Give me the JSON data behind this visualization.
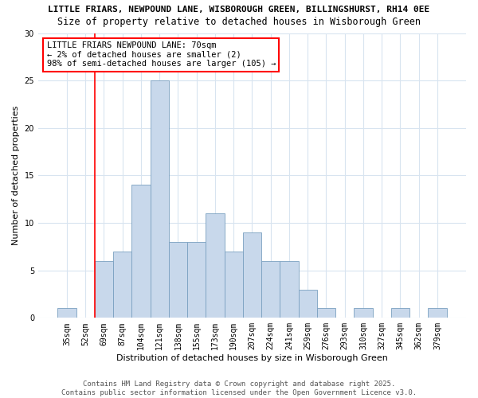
{
  "title_line1": "LITTLE FRIARS, NEWPOUND LANE, WISBOROUGH GREEN, BILLINGSHURST, RH14 0EE",
  "title_line2": "Size of property relative to detached houses in Wisborough Green",
  "xlabel": "Distribution of detached houses by size in Wisborough Green",
  "ylabel": "Number of detached properties",
  "categories": [
    "35sqm",
    "52sqm",
    "69sqm",
    "87sqm",
    "104sqm",
    "121sqm",
    "138sqm",
    "155sqm",
    "173sqm",
    "190sqm",
    "207sqm",
    "224sqm",
    "241sqm",
    "259sqm",
    "276sqm",
    "293sqm",
    "310sqm",
    "327sqm",
    "345sqm",
    "362sqm",
    "379sqm"
  ],
  "values": [
    1,
    0,
    6,
    7,
    14,
    25,
    8,
    8,
    11,
    7,
    9,
    6,
    6,
    3,
    1,
    0,
    1,
    0,
    1,
    0,
    1
  ],
  "bar_color": "#c8d8eb",
  "bar_edge_color": "#7aa0c0",
  "bar_edge_width": 0.6,
  "annotation_text": "LITTLE FRIARS NEWPOUND LANE: 70sqm\n← 2% of detached houses are smaller (2)\n98% of semi-detached houses are larger (105) →",
  "annotation_box_color": "white",
  "annotation_box_edge_color": "red",
  "marker_color": "red",
  "ylim": [
    0,
    30
  ],
  "yticks": [
    0,
    5,
    10,
    15,
    20,
    25,
    30
  ],
  "bg_color": "#ffffff",
  "plot_bg_color": "#ffffff",
  "grid_color": "#d8e4f0",
  "footer_line1": "Contains HM Land Registry data © Crown copyright and database right 2025.",
  "footer_line2": "Contains public sector information licensed under the Open Government Licence v3.0.",
  "title_fontsize": 8.0,
  "subtitle_fontsize": 8.5,
  "axis_label_fontsize": 8.0,
  "tick_fontsize": 7.0,
  "footer_fontsize": 6.5,
  "annotation_fontsize": 7.5
}
